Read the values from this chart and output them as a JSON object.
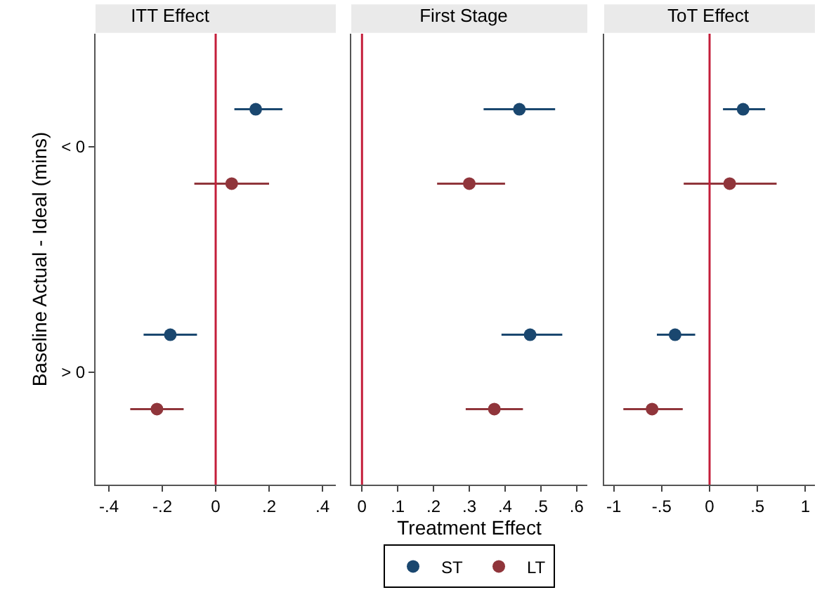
{
  "chart_data": [
    {
      "type": "scatter",
      "title": "ITT Effect",
      "ylabel": "Baseline Actual - Ideal (mins)",
      "orientation": "horizontal",
      "categories": [
        "< 0",
        "> 0"
      ],
      "marker": "circle",
      "xlim": [
        -0.45,
        0.45
      ],
      "xticks": [
        {
          "value": -0.4,
          "label": "-.4"
        },
        {
          "value": -0.2,
          "label": "-.2"
        },
        0,
        {
          "value": 0.2,
          "label": ".2"
        },
        {
          "value": 0.4,
          "label": ".4"
        }
      ],
      "series": [
        {
          "color": "#1a476f",
          "values": [
            0.15,
            -0.17
          ],
          "errors": [
            [
              0.07,
              0.25
            ],
            [
              -0.27,
              -0.07
            ]
          ]
        },
        {
          "color": "#90353b",
          "values": [
            0.06,
            -0.22
          ],
          "errors": [
            [
              -0.08,
              0.2
            ],
            [
              -0.32,
              -0.12
            ]
          ]
        }
      ],
      "ref_lines": [
        {
          "axis": "x",
          "value": 0,
          "color": "#c41e3a"
        }
      ]
    },
    {
      "type": "scatter",
      "title": "First Stage",
      "xlabel": "Treatment Effect",
      "orientation": "horizontal",
      "categories": [
        null,
        null
      ],
      "marker": "circle",
      "tick_labels": "x",
      "legend": "bottom",
      "xlim": [
        -0.03,
        0.63
      ],
      "xticks": [
        0,
        {
          "value": 0.1,
          "label": ".1"
        },
        {
          "value": 0.2,
          "label": ".2"
        },
        {
          "value": 0.3,
          "label": ".3"
        },
        {
          "value": 0.4,
          "label": ".4"
        },
        {
          "value": 0.5,
          "label": ".5"
        },
        {
          "value": 0.6,
          "label": ".6"
        }
      ],
      "series": [
        {
          "name": "ST",
          "color": "#1a476f",
          "values": [
            0.44,
            0.47
          ],
          "errors": [
            [
              0.34,
              0.54
            ],
            [
              0.39,
              0.56
            ]
          ]
        },
        {
          "name": "LT",
          "color": "#90353b",
          "values": [
            0.3,
            0.37
          ],
          "errors": [
            [
              0.21,
              0.4
            ],
            [
              0.29,
              0.45
            ]
          ]
        }
      ],
      "ref_lines": [
        {
          "axis": "x",
          "value": 0,
          "color": "#c41e3a"
        }
      ]
    },
    {
      "type": "scatter",
      "title": "ToT Effect",
      "orientation": "horizontal",
      "categories": [
        null,
        null
      ],
      "marker": "circle",
      "tick_labels": "x",
      "xlim": [
        -1.1,
        1.1
      ],
      "xticks": [
        -1,
        {
          "value": -0.5,
          "label": "-.5"
        },
        0,
        {
          "value": 0.5,
          "label": ".5"
        },
        1
      ],
      "series": [
        {
          "color": "#1a476f",
          "values": [
            0.35,
            -0.36
          ],
          "errors": [
            [
              0.14,
              0.58
            ],
            [
              -0.55,
              -0.15
            ]
          ]
        },
        {
          "color": "#90353b",
          "values": [
            0.21,
            -0.6
          ],
          "errors": [
            [
              -0.27,
              0.7
            ],
            [
              -0.9,
              -0.28
            ]
          ]
        }
      ],
      "ref_lines": [
        {
          "axis": "x",
          "value": 0,
          "color": "#c41e3a"
        }
      ]
    }
  ]
}
